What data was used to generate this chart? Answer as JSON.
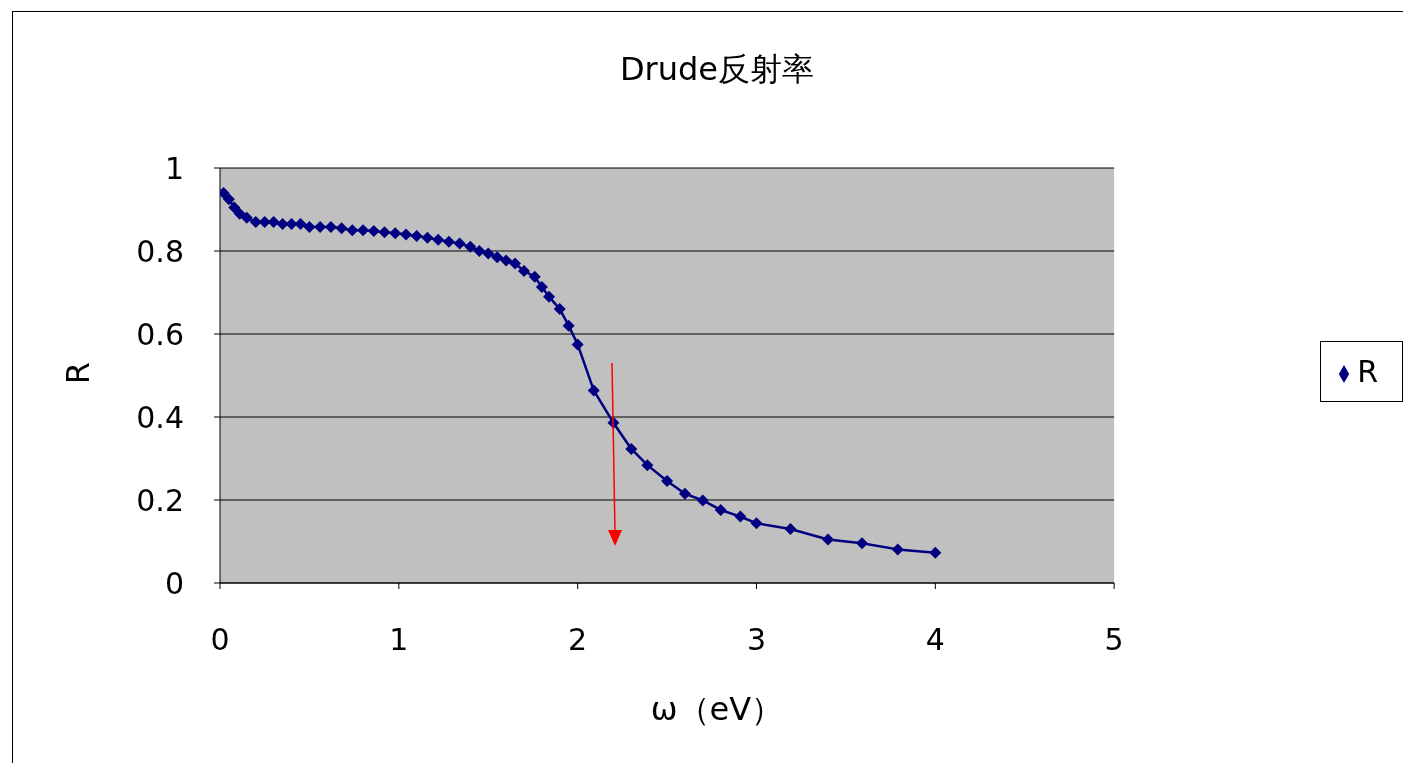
{
  "chart_data": {
    "type": "line",
    "title": "Drude反射率",
    "xlabel": "ω（eV）",
    "ylabel": "R",
    "xlim": [
      0,
      5
    ],
    "xticks": [
      0,
      1,
      2,
      3,
      4,
      5
    ],
    "ylim": [
      0,
      1
    ],
    "yticks": [
      0,
      0.2,
      0.4,
      0.6,
      0.8,
      1
    ],
    "grid": "y",
    "legend": "right",
    "marker": "diamond",
    "line_style": "solid",
    "series": [
      {
        "name": "R",
        "color": "#000080",
        "x": [
          0.02,
          0.05,
          0.08,
          0.11,
          0.15,
          0.2,
          0.25,
          0.3,
          0.35,
          0.4,
          0.45,
          0.5,
          0.56,
          0.62,
          0.68,
          0.74,
          0.8,
          0.86,
          0.92,
          0.98,
          1.04,
          1.1,
          1.16,
          1.22,
          1.28,
          1.34,
          1.4,
          1.45,
          1.5,
          1.55,
          1.6,
          1.65,
          1.7,
          1.76,
          1.8,
          1.84,
          1.9,
          1.95,
          2.0,
          2.09,
          2.2,
          2.3,
          2.39,
          2.5,
          2.6,
          2.7,
          2.8,
          2.91,
          3.0,
          3.19,
          3.4,
          3.59,
          3.79,
          4.0
        ],
        "values": [
          0.94,
          0.925,
          0.905,
          0.89,
          0.88,
          0.87,
          0.87,
          0.87,
          0.865,
          0.865,
          0.865,
          0.858,
          0.858,
          0.858,
          0.855,
          0.85,
          0.85,
          0.848,
          0.845,
          0.843,
          0.84,
          0.836,
          0.832,
          0.827,
          0.822,
          0.818,
          0.81,
          0.8,
          0.794,
          0.785,
          0.777,
          0.77,
          0.752,
          0.738,
          0.713,
          0.69,
          0.66,
          0.62,
          0.575,
          0.464,
          0.386,
          0.323,
          0.284,
          0.246,
          0.215,
          0.199,
          0.176,
          0.16,
          0.144,
          0.13,
          0.105,
          0.096,
          0.081,
          0.073
        ]
      }
    ]
  }
}
